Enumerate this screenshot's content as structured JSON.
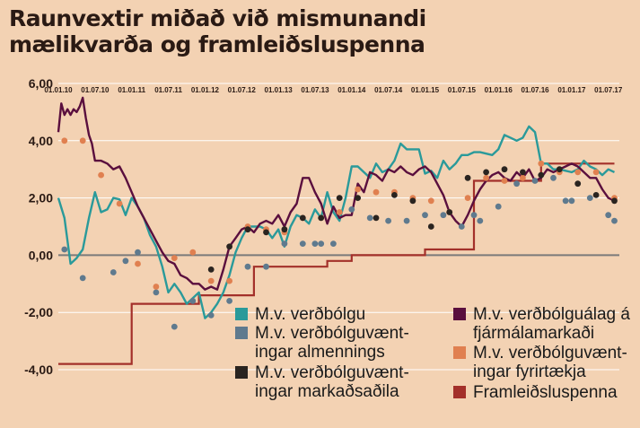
{
  "title": "Raunvextir miðað við mismunandi mælikvarða og framleiðsluspenna",
  "colors": {
    "background": "#f3d2b3",
    "zero_line": "#7a7a7a",
    "grid": "#ffffff",
    "vb": "#2a9a9a",
    "vbalag": "#5a0f3e",
    "almenn": "#5f7a8e",
    "fyrirt": "#e08050",
    "markad": "#2a2420",
    "framl": "#a3302a"
  },
  "legend": [
    {
      "key": "vb",
      "label": "M.v. verðbólgu"
    },
    {
      "key": "vbalag",
      "label": "M.v. verðbólguálag á fjármálamarkaði"
    },
    {
      "key": "almenn",
      "label": "M.v. verðbólguvænt-ingar almennings"
    },
    {
      "key": "fyrirt",
      "label": "M.v. verðbólguvænt-ingar fyrirtækja"
    },
    {
      "key": "markad",
      "label": "M.v. verðbólguvænt-ingar markaðsaðila"
    },
    {
      "key": "framl",
      "label": "Framleiðsluspenna"
    }
  ],
  "chart_data": {
    "type": "line",
    "title": "Raunvextir miðað við mismunandi mælikvarða og framleiðsluspenna",
    "ylim": [
      -4,
      6
    ],
    "yticks": [
      "6,00",
      "4,00",
      "2,00",
      "0,00",
      "-2,00",
      "-4,00"
    ],
    "ytick_values": [
      6,
      4,
      2,
      0,
      -2,
      -4
    ],
    "xlim": [
      2010.0,
      2017.65
    ],
    "xticks": [
      "01.01.10",
      "01.07.10",
      "01.01.11",
      "01.07.11",
      "01.01.12",
      "01.07.12",
      "01.01.13",
      "01.07.13",
      "01.01.14",
      "01.07.14",
      "01.01.15",
      "01.07.15",
      "01.01.16",
      "01.07.16",
      "01.01.17",
      "01.07.17"
    ],
    "xtick_values": [
      2010.0,
      2010.5,
      2011.0,
      2011.5,
      2012.0,
      2012.5,
      2013.0,
      2013.5,
      2014.0,
      2014.5,
      2015.0,
      2015.5,
      2016.0,
      2016.5,
      2017.0,
      2017.5
    ],
    "grid": true,
    "series": [
      {
        "name": "M.v. verðbólgu",
        "key": "vb",
        "kind": "line",
        "x": [
          2010.0,
          2010.083,
          2010.167,
          2010.25,
          2010.333,
          2010.417,
          2010.5,
          2010.583,
          2010.667,
          2010.75,
          2010.833,
          2010.917,
          2011.0,
          2011.083,
          2011.167,
          2011.25,
          2011.333,
          2011.417,
          2011.5,
          2011.583,
          2011.667,
          2011.75,
          2011.833,
          2011.917,
          2012.0,
          2012.083,
          2012.167,
          2012.25,
          2012.333,
          2012.417,
          2012.5,
          2012.583,
          2012.667,
          2012.75,
          2012.833,
          2012.917,
          2013.0,
          2013.083,
          2013.167,
          2013.25,
          2013.333,
          2013.417,
          2013.5,
          2013.583,
          2013.667,
          2013.75,
          2013.833,
          2013.917,
          2014.0,
          2014.083,
          2014.167,
          2014.25,
          2014.333,
          2014.417,
          2014.5,
          2014.583,
          2014.667,
          2014.75,
          2014.833,
          2014.917,
          2015.0,
          2015.083,
          2015.167,
          2015.25,
          2015.333,
          2015.417,
          2015.5,
          2015.583,
          2015.667,
          2015.75,
          2015.833,
          2015.917,
          2016.0,
          2016.083,
          2016.167,
          2016.25,
          2016.333,
          2016.417,
          2016.5,
          2016.583,
          2016.667,
          2016.75,
          2016.833,
          2016.917,
          2017.0,
          2017.083,
          2017.167,
          2017.25,
          2017.333,
          2017.417,
          2017.5,
          2017.583
        ],
        "values": [
          2.0,
          1.3,
          -0.3,
          -0.1,
          0.2,
          1.3,
          2.2,
          1.5,
          1.6,
          2.0,
          1.95,
          1.4,
          2.0,
          1.7,
          1.3,
          0.7,
          0.3,
          -0.4,
          -1.3,
          -1.0,
          -1.3,
          -1.7,
          -1.5,
          -1.3,
          -2.2,
          -2.0,
          -1.7,
          -1.3,
          -0.7,
          0.1,
          0.6,
          1.0,
          1.0,
          1.0,
          0.9,
          0.6,
          0.9,
          0.3,
          1.0,
          1.4,
          1.3,
          1.1,
          1.6,
          1.3,
          2.2,
          1.5,
          1.2,
          2.0,
          3.1,
          3.1,
          2.9,
          2.7,
          3.2,
          2.9,
          3.0,
          3.3,
          3.9,
          3.7,
          3.7,
          3.7,
          2.85,
          2.95,
          2.7,
          3.3,
          3.0,
          3.2,
          3.5,
          3.5,
          3.6,
          3.6,
          3.55,
          3.5,
          3.7,
          4.2,
          4.1,
          4.0,
          4.1,
          4.5,
          4.3,
          3.2,
          3.2,
          3.0,
          3.0,
          2.95,
          2.9,
          3.0,
          3.3,
          3.1,
          3.0,
          2.8,
          3.0,
          2.9
        ]
      },
      {
        "name": "M.v. verðbólguálag á fjármálamarkaði",
        "key": "vbalag",
        "kind": "line",
        "x": [
          2010.0,
          2010.04,
          2010.083,
          2010.125,
          2010.167,
          2010.208,
          2010.25,
          2010.292,
          2010.333,
          2010.375,
          2010.417,
          2010.458,
          2010.5,
          2010.583,
          2010.667,
          2010.75,
          2010.833,
          2010.917,
          2011.0,
          2011.083,
          2011.167,
          2011.25,
          2011.333,
          2011.417,
          2011.5,
          2011.583,
          2011.667,
          2011.75,
          2011.833,
          2011.917,
          2012.0,
          2012.083,
          2012.167,
          2012.25,
          2012.333,
          2012.417,
          2012.5,
          2012.583,
          2012.667,
          2012.75,
          2012.833,
          2012.917,
          2013.0,
          2013.083,
          2013.167,
          2013.25,
          2013.333,
          2013.417,
          2013.5,
          2013.583,
          2013.667,
          2013.75,
          2013.833,
          2013.917,
          2014.0,
          2014.083,
          2014.167,
          2014.25,
          2014.333,
          2014.417,
          2014.5,
          2014.583,
          2014.667,
          2014.75,
          2014.833,
          2014.917,
          2015.0,
          2015.083,
          2015.167,
          2015.25,
          2015.333,
          2015.417,
          2015.5,
          2015.583,
          2015.667,
          2015.75,
          2015.833,
          2015.917,
          2016.0,
          2016.083,
          2016.167,
          2016.25,
          2016.333,
          2016.417,
          2016.5,
          2016.583,
          2016.667,
          2016.75,
          2016.833,
          2016.917,
          2017.0,
          2017.083,
          2017.167,
          2017.25,
          2017.333,
          2017.417,
          2017.5,
          2017.583
        ],
        "values": [
          4.3,
          5.3,
          4.9,
          5.1,
          4.9,
          5.1,
          5.0,
          5.2,
          5.5,
          4.8,
          4.2,
          3.9,
          3.3,
          3.3,
          3.2,
          3.0,
          3.1,
          2.7,
          2.2,
          1.7,
          1.3,
          0.9,
          0.5,
          0.1,
          -0.2,
          -0.3,
          -0.7,
          -0.8,
          -1.0,
          -1.0,
          -1.2,
          -1.1,
          -1.2,
          -0.5,
          0.3,
          0.6,
          0.9,
          1.0,
          0.8,
          1.1,
          1.2,
          1.1,
          1.4,
          1.0,
          1.5,
          1.8,
          2.7,
          2.7,
          2.2,
          1.8,
          1.1,
          1.7,
          1.3,
          1.4,
          1.4,
          2.5,
          2.2,
          2.9,
          2.8,
          2.6,
          3.0,
          2.9,
          3.1,
          2.9,
          2.8,
          3.0,
          3.1,
          2.9,
          2.5,
          2.1,
          1.5,
          1.2,
          1.0,
          1.4,
          1.9,
          2.3,
          2.6,
          2.8,
          2.9,
          2.7,
          2.6,
          2.9,
          2.7,
          3.0,
          2.6,
          2.7,
          3.0,
          2.9,
          3.0,
          3.1,
          3.2,
          3.1,
          2.9,
          2.7,
          2.7,
          2.3,
          2.0,
          1.9
        ]
      },
      {
        "name": "M.v. verðbólguvænt-ingar almennings",
        "key": "almenn",
        "kind": "dots",
        "x": [
          2010.083,
          2010.333,
          2010.75,
          2010.917,
          2011.083,
          2011.333,
          2011.583,
          2011.833,
          2012.083,
          2012.333,
          2012.583,
          2012.833,
          2013.083,
          2013.333,
          2013.5,
          2013.583,
          2013.75,
          2014.0,
          2014.25,
          2014.5,
          2014.75,
          2015.0,
          2015.25,
          2015.5,
          2015.667,
          2015.75,
          2016.0,
          2016.25,
          2016.5,
          2016.75,
          2016.917,
          2017.0,
          2017.25,
          2017.5,
          2017.583
        ],
        "values": [
          0.2,
          -0.8,
          -0.6,
          -0.2,
          0.1,
          -1.3,
          -2.5,
          -1.6,
          -2.1,
          -1.6,
          -0.4,
          -0.4,
          0.4,
          0.4,
          0.4,
          0.4,
          0.4,
          1.6,
          1.3,
          1.2,
          1.2,
          1.4,
          1.4,
          1.0,
          1.4,
          1.2,
          1.7,
          2.5,
          2.6,
          2.7,
          1.9,
          1.9,
          2.0,
          1.4,
          1.2
        ]
      },
      {
        "name": "M.v. verðbólguvænt-ingar fyrirtækja",
        "key": "fyrirt",
        "kind": "dots",
        "x": [
          2010.083,
          2010.333,
          2010.583,
          2010.833,
          2011.083,
          2011.333,
          2011.583,
          2011.833,
          2012.083,
          2012.333,
          2012.583,
          2012.833,
          2013.083,
          2013.333,
          2013.583,
          2013.833,
          2014.083,
          2014.333,
          2014.583,
          2014.833,
          2015.083,
          2015.333,
          2015.583,
          2015.833,
          2016.083,
          2016.333,
          2016.583,
          2016.833,
          2017.083,
          2017.333,
          2017.583
        ],
        "values": [
          4.0,
          4.0,
          2.8,
          1.8,
          -0.3,
          -1.1,
          -0.1,
          0.1,
          -0.9,
          -0.9,
          1.0,
          0.9,
          0.8,
          1.3,
          1.3,
          1.5,
          2.3,
          2.2,
          2.2,
          2.0,
          1.9,
          1.5,
          2.0,
          2.7,
          2.6,
          2.7,
          3.2,
          2.9,
          2.9,
          2.9,
          2.0
        ]
      },
      {
        "name": "M.v. verðbólguvænt-ingar markaðsaðila",
        "key": "markad",
        "kind": "dots",
        "x": [
          2012.083,
          2012.333,
          2012.583,
          2012.833,
          2013.083,
          2013.333,
          2013.583,
          2013.833,
          2014.083,
          2014.333,
          2014.583,
          2014.833,
          2015.083,
          2015.333,
          2015.583,
          2015.833,
          2016.083,
          2016.333,
          2016.583,
          2016.833,
          2017.083,
          2017.333,
          2017.583
        ],
        "values": [
          -0.5,
          0.3,
          0.9,
          0.8,
          0.9,
          1.3,
          1.3,
          2.0,
          2.0,
          1.3,
          2.1,
          1.9,
          1.0,
          1.5,
          2.7,
          2.9,
          3.0,
          2.9,
          2.8,
          3.0,
          2.5,
          2.1,
          1.9
        ]
      },
      {
        "name": "Framleiðsluspenna",
        "key": "framl",
        "kind": "step",
        "x": [
          2010.0,
          2010.917,
          2011.0,
          2011.917,
          2012.667,
          2013.333,
          2013.667,
          2014.0,
          2014.5,
          2015.0,
          2015.583,
          2015.667,
          2016.583,
          2017.583
        ],
        "values": [
          -3.8,
          -3.8,
          -1.7,
          -1.4,
          -0.4,
          -0.4,
          -0.2,
          0.0,
          0.0,
          0.2,
          0.2,
          2.6,
          3.2,
          3.2
        ]
      }
    ]
  }
}
